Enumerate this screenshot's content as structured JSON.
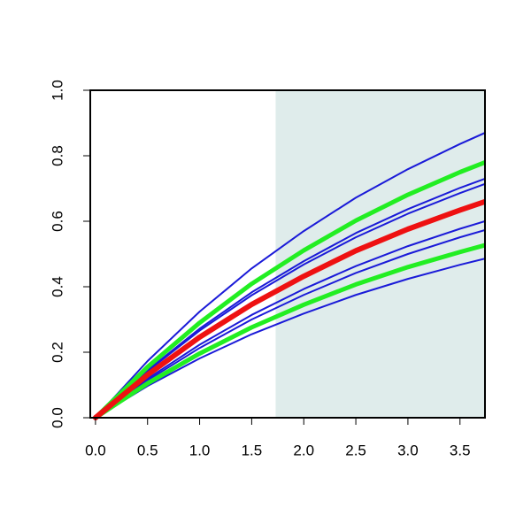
{
  "chart_data": {
    "type": "line",
    "x": [
      0,
      0.5,
      1,
      1.5,
      2,
      2.5,
      3,
      3.5,
      3.74
    ],
    "series": [
      {
        "color": "#1a1ad8",
        "width": 2,
        "values": [
          0,
          0.173,
          0.324,
          0.456,
          0.57,
          0.672,
          0.759,
          0.836,
          0.87
        ]
      },
      {
        "color": "#1a1ad8",
        "width": 2,
        "values": [
          0,
          0.145,
          0.272,
          0.383,
          0.478,
          0.564,
          0.637,
          0.702,
          0.73
        ]
      },
      {
        "color": "#1a1ad8",
        "width": 2,
        "values": [
          0,
          0.142,
          0.266,
          0.374,
          0.468,
          0.551,
          0.623,
          0.686,
          0.714
        ]
      },
      {
        "color": "#1a1ad8",
        "width": 2,
        "values": [
          0,
          0.119,
          0.223,
          0.314,
          0.393,
          0.463,
          0.524,
          0.577,
          0.6
        ]
      },
      {
        "color": "#1a1ad8",
        "width": 2,
        "values": [
          0,
          0.114,
          0.213,
          0.3,
          0.375,
          0.442,
          0.5,
          0.551,
          0.573
        ]
      },
      {
        "color": "#1a1ad8",
        "width": 2,
        "values": [
          0,
          0.097,
          0.181,
          0.255,
          0.318,
          0.375,
          0.424,
          0.467,
          0.486
        ]
      },
      {
        "color": "#22ee22",
        "width": 5,
        "values": [
          0,
          0.155,
          0.29,
          0.409,
          0.511,
          0.602,
          0.681,
          0.75,
          0.78
        ]
      },
      {
        "color": "#22ee22",
        "width": 5,
        "values": [
          0,
          0.105,
          0.196,
          0.276,
          0.345,
          0.407,
          0.46,
          0.506,
          0.527
        ]
      },
      {
        "color": "#ee1111",
        "width": 6,
        "values": [
          0,
          0.131,
          0.246,
          0.346,
          0.432,
          0.51,
          0.576,
          0.634,
          0.66
        ]
      }
    ],
    "highlight_xrange": [
      1.73,
      3.74
    ],
    "highlight_color": "#dfeceb",
    "xlim": [
      -0.05,
      3.74
    ],
    "ylim": [
      0,
      1
    ],
    "xticks": [
      {
        "value": 0,
        "label": "0.0"
      },
      {
        "value": 0.5,
        "label": "0.5"
      },
      {
        "value": 1,
        "label": "1.0"
      },
      {
        "value": 1.5,
        "label": "1.5"
      },
      {
        "value": 2,
        "label": "2.0"
      },
      {
        "value": 2.5,
        "label": "2.5"
      },
      {
        "value": 3,
        "label": "3.0"
      },
      {
        "value": 3.5,
        "label": "3.5"
      }
    ],
    "yticks": [
      {
        "value": 0,
        "label": "0.0"
      },
      {
        "value": 0.2,
        "label": "0.2"
      },
      {
        "value": 0.4,
        "label": "0.4"
      },
      {
        "value": 0.6,
        "label": "0.6"
      },
      {
        "value": 0.8,
        "label": "0.8"
      },
      {
        "value": 1,
        "label": "1.0"
      }
    ]
  }
}
